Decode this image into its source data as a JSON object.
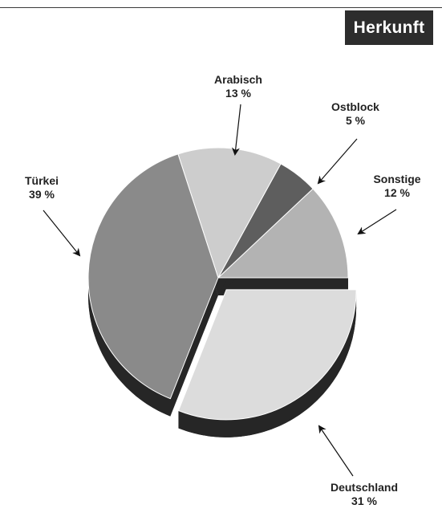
{
  "header": {
    "title": "Herkunft"
  },
  "colors": {
    "slice_deutschland": "#dcdcdc",
    "slice_tuerkei": "#8a8a8a",
    "slice_arabisch": "#cdcdcd",
    "slice_ostblock": "#5e5e5e",
    "slice_sonstige": "#b3b3b3",
    "side_shadow": "#262626",
    "outline": "#ffffff"
  },
  "chart_data": {
    "type": "pie",
    "title": "Herkunft",
    "exploded": [
      "Deutschland"
    ],
    "start_order_clockwise_from_east": [
      "Deutschland",
      "Türkei",
      "Arabisch",
      "Ostblock",
      "Sonstige"
    ],
    "slices": [
      {
        "name": "Deutschland",
        "value": 31,
        "label": "Deutschland",
        "value_label": "31 %"
      },
      {
        "name": "Türkei",
        "value": 39,
        "label": "Türkei",
        "value_label": "39 %"
      },
      {
        "name": "Arabisch",
        "value": 13,
        "label": "Arabisch",
        "value_label": "13 %"
      },
      {
        "name": "Ostblock",
        "value": 5,
        "label": "Ostblock",
        "value_label": "5 %"
      },
      {
        "name": "Sonstige",
        "value": 12,
        "label": "Sonstige",
        "value_label": "12 %"
      }
    ]
  }
}
